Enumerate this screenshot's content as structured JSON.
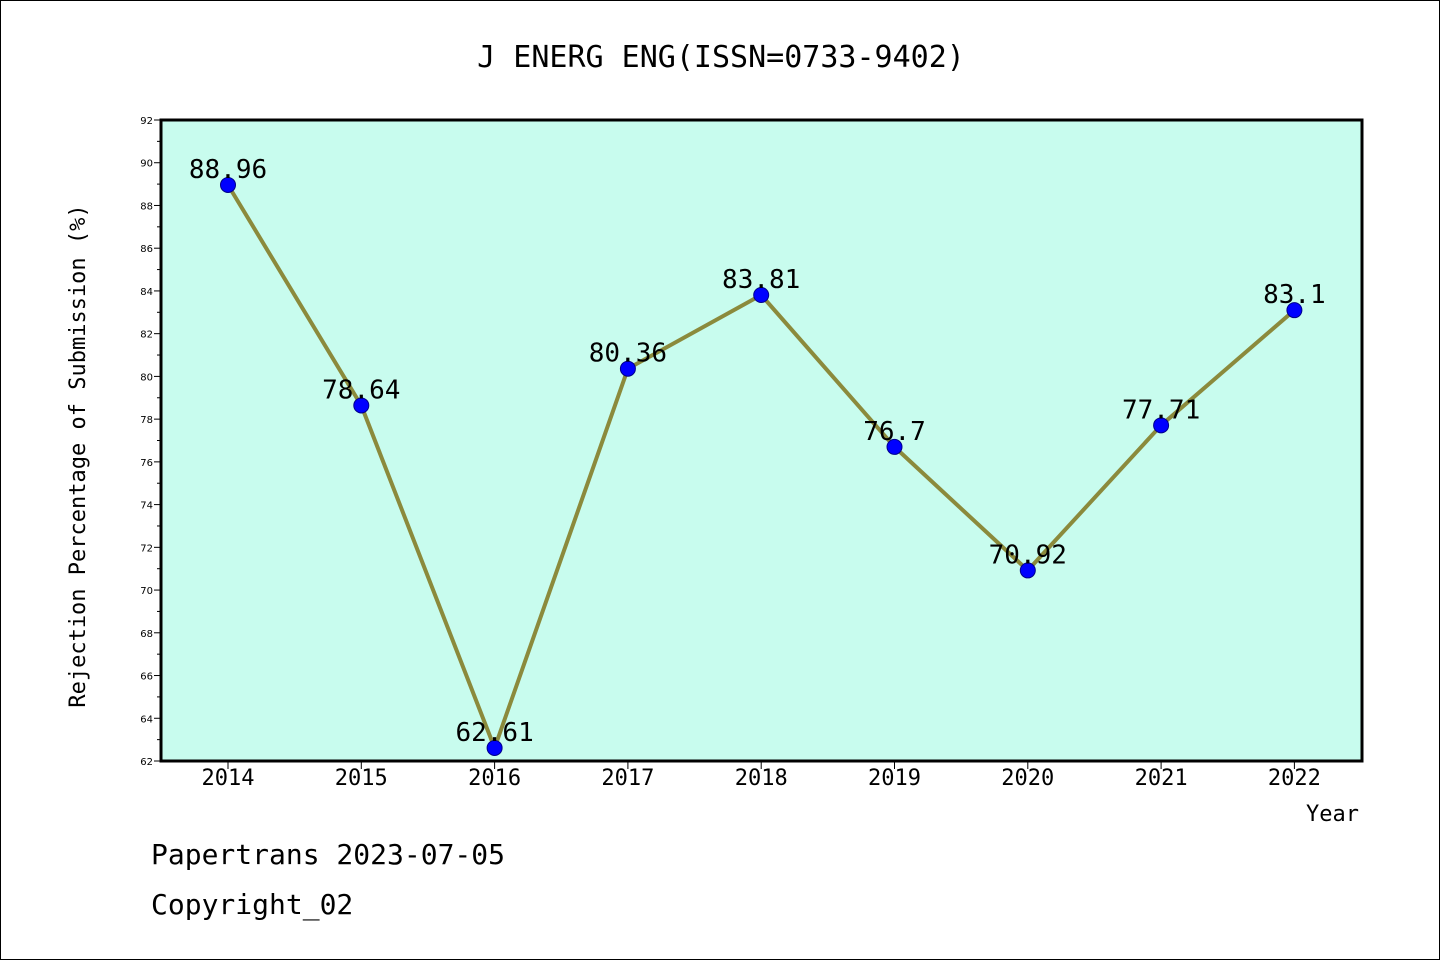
{
  "chart_data": {
    "type": "line",
    "title": "J ENERG ENG(ISSN=0733-9402)",
    "xlabel": "Year",
    "ylabel": "Rejection Percentage of Submission (%)",
    "categories": [
      "2014",
      "2015",
      "2016",
      "2017",
      "2018",
      "2019",
      "2020",
      "2021",
      "2022"
    ],
    "series": [
      {
        "values": [
          88.96,
          78.64,
          62.61,
          80.36,
          83.81,
          76.7,
          70.92,
          77.71,
          83.1
        ],
        "labels": [
          "88.96",
          "78.64",
          "62.61",
          "80.36",
          "83.81",
          "76.7",
          "70.92",
          "77.71",
          "83.1"
        ]
      }
    ],
    "ylim": [
      62,
      92
    ],
    "yticks": [
      "62",
      "64",
      "66",
      "68",
      "70",
      "72",
      "74",
      "76",
      "78",
      "80",
      "82",
      "84",
      "86",
      "88",
      "90",
      "92"
    ],
    "grid": false,
    "colors": {
      "plot_background": "#c8fcee",
      "line": "#8b8a3c",
      "marker": "#0000ff"
    }
  },
  "footer": {
    "line1": "Papertrans 2023-07-05",
    "line2": "Copyright_02"
  }
}
